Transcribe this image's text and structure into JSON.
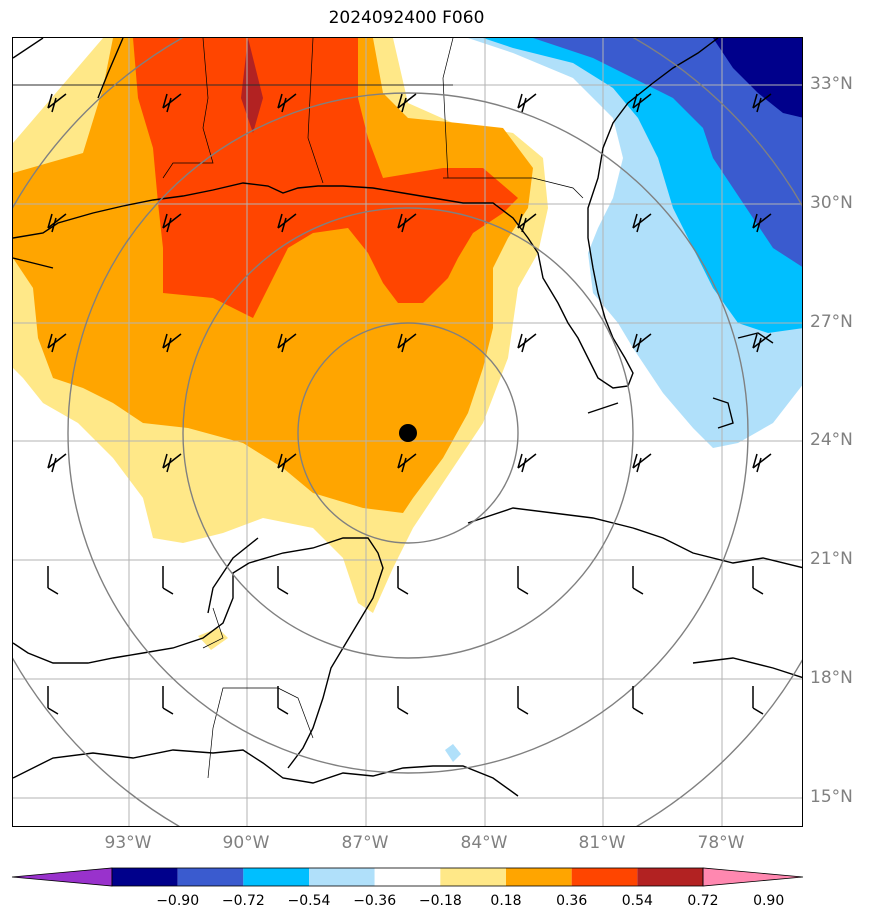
{
  "title": "2024092400 F060",
  "lat_labels": [
    "33°N",
    "30°N",
    "27°N",
    "24°N",
    "21°N",
    "18°N",
    "15°N"
  ],
  "lon_labels": [
    "93°W",
    "90°W",
    "87°W",
    "84°W",
    "81°W",
    "78°W"
  ],
  "colorbar": {
    "ticks": [
      "−0.90",
      "−0.72",
      "−0.54",
      "−0.36",
      "−0.18",
      "0.18",
      "0.36",
      "0.54",
      "0.72",
      "0.90"
    ],
    "colors": [
      "#9932cc",
      "#00008b",
      "#3a5bcf",
      "#00bfff",
      "#b0e0fa",
      "#ffffff",
      "#ffe888",
      "#ffa500",
      "#ff4500",
      "#b22222",
      "#ff88b0"
    ]
  },
  "colors": {
    "dark_red": "#b22222",
    "red_orange": "#ff4500",
    "orange": "#ffa500",
    "light_yellow": "#ffe888",
    "light_blue": "#b0e0fa",
    "cyan": "#00bfff",
    "medium_blue": "#3a5bcf",
    "navy": "#00008b",
    "grid": "#b3b3b3",
    "range_rings": "#808080"
  },
  "map": {
    "storm_center_marker": "black-dot",
    "range_rings": 4,
    "wind_barbs": true
  }
}
